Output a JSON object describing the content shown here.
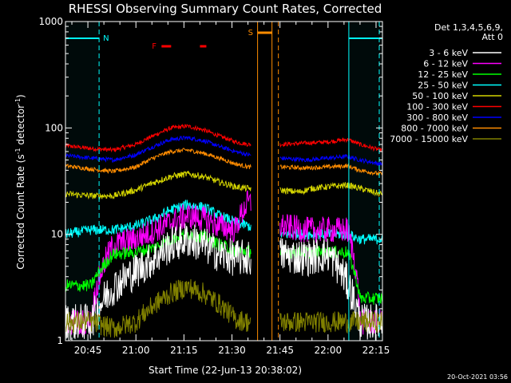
{
  "chart_data": {
    "type": "line",
    "title": "RHESSI Observing Summary Count Rates, Corrected",
    "xlabel": "Start Time (22-Jun-13 20:38:02)",
    "ylabel": "Corrected Count Rate (s",
    "ylabel_sup1": "-1",
    "ylabel_mid": " detector",
    "ylabel_sup2": "-1",
    "ylabel_end": ")",
    "y_scale": "log",
    "ylim": [
      1,
      1000
    ],
    "y_ticks": [
      {
        "value": 1,
        "label": "1"
      },
      {
        "value": 10,
        "label": "10"
      },
      {
        "value": 100,
        "label": "100"
      },
      {
        "value": 1000,
        "label": "1000"
      }
    ],
    "xlim_minutes": [
      0,
      99
    ],
    "x_ticks": [
      {
        "min": 7,
        "label": "20:45"
      },
      {
        "min": 22,
        "label": "21:00"
      },
      {
        "min": 37,
        "label": "21:15"
      },
      {
        "min": 52,
        "label": "21:30"
      },
      {
        "min": 67,
        "label": "21:45"
      },
      {
        "min": 82,
        "label": "22:00"
      },
      {
        "min": 97,
        "label": "22:15"
      }
    ],
    "legend_header": [
      "Det 1,3,4,5,6,9,",
      "Att 0"
    ],
    "legend_position": "right",
    "timestamp": "20-Oct-2021 03:56",
    "gap_minutes": [
      58,
      67
    ],
    "night_shading_color": "#00ffff",
    "flags": {
      "N": {
        "label": "N",
        "color": "#00ffff",
        "segments": [
          [
            0,
            10.5
          ],
          [
            88.5,
            99
          ]
        ],
        "markers": [
          10.5,
          88.5,
          98
        ]
      },
      "S": {
        "label": "S",
        "color": "#ff8c00",
        "segments": [
          [
            60,
            64.5
          ]
        ],
        "markers": [
          60,
          64.5,
          66.5
        ]
      },
      "F": {
        "label": "F",
        "color": "#ff0000",
        "segments": [
          [
            30,
            33
          ],
          [
            42,
            44
          ]
        ]
      }
    },
    "series": [
      {
        "name": "3 - 6 keV",
        "color": "#ffffff"
      },
      {
        "name": "6 - 12 keV",
        "color": "#ff00ff"
      },
      {
        "name": "12 - 25 keV",
        "color": "#00ff00"
      },
      {
        "name": "25 - 50 keV",
        "color": "#00ffff"
      },
      {
        "name": "50 - 100 keV",
        "color": "#d4d400"
      },
      {
        "name": "100 - 300 keV",
        "color": "#ff0000"
      },
      {
        "name": "300 - 800 keV",
        "color": "#0000ff"
      },
      {
        "name": "800 - 7000 keV",
        "color": "#ff8c00"
      },
      {
        "name": "7000 - 15000 keV",
        "color": "#808000"
      }
    ],
    "series_traces": [
      {
        "name": "100 - 300 keV",
        "t": [
          0,
          8,
          15,
          22,
          28,
          33,
          38,
          43,
          48,
          53,
          57,
          67,
          75,
          82,
          88,
          92,
          98
        ],
        "v": [
          68,
          64,
          62,
          70,
          86,
          100,
          104,
          96,
          84,
          74,
          70,
          70,
          72,
          74,
          78,
          70,
          62
        ]
      },
      {
        "name": "300 - 800 keV",
        "t": [
          0,
          8,
          15,
          22,
          28,
          33,
          38,
          43,
          48,
          53,
          57,
          67,
          75,
          82,
          88,
          92,
          98
        ],
        "v": [
          55,
          52,
          50,
          56,
          68,
          78,
          81,
          76,
          67,
          60,
          56,
          52,
          50,
          52,
          54,
          50,
          46
        ]
      },
      {
        "name": "800 - 7000 keV",
        "t": [
          0,
          8,
          15,
          22,
          28,
          33,
          38,
          43,
          48,
          53,
          57,
          67,
          75,
          82,
          88,
          92,
          98
        ],
        "v": [
          44,
          41,
          39,
          43,
          53,
          60,
          62,
          58,
          52,
          46,
          43,
          43,
          42,
          43,
          44,
          40,
          37
        ]
      },
      {
        "name": "50 - 100 keV",
        "t": [
          0,
          8,
          15,
          22,
          28,
          33,
          38,
          43,
          48,
          53,
          57,
          67,
          73,
          77,
          82,
          88,
          92,
          98
        ],
        "v": [
          24,
          23,
          23,
          26,
          31,
          35,
          37,
          35,
          31,
          28,
          27,
          26,
          25,
          27,
          28,
          29,
          27,
          24
        ]
      },
      {
        "name": "25 - 50 keV",
        "t": [
          0,
          8,
          15,
          22,
          28,
          33,
          38,
          43,
          48,
          53,
          57,
          67,
          75,
          82,
          88,
          92,
          98
        ],
        "v": [
          10,
          11,
          11,
          12,
          14,
          17,
          19,
          18,
          15,
          13,
          12,
          10,
          10,
          10,
          10,
          9,
          9
        ]
      },
      {
        "name": "6 - 12 keV",
        "t": [
          0,
          8,
          15,
          22,
          28,
          33,
          38,
          43,
          48,
          53,
          57,
          67,
          75,
          82,
          88,
          92,
          98
        ],
        "v": [
          1.5,
          1.5,
          8,
          9,
          11,
          13,
          15,
          14,
          12,
          11,
          20,
          12,
          11,
          11,
          11,
          1.5,
          1.5
        ]
      },
      {
        "name": "12 - 25 keV",
        "t": [
          0,
          8,
          15,
          22,
          28,
          33,
          38,
          43,
          48,
          53,
          57,
          67,
          75,
          82,
          88,
          92,
          98
        ],
        "v": [
          3.3,
          3.3,
          6.5,
          6.8,
          7.5,
          9,
          10,
          9.5,
          8,
          7,
          7,
          6.8,
          6.8,
          6.8,
          6.8,
          2.5,
          2.5
        ]
      },
      {
        "name": "3 - 6 keV",
        "t": [
          0,
          8,
          15,
          22,
          28,
          33,
          38,
          43,
          48,
          53,
          57,
          67,
          75,
          82,
          88,
          92,
          98
        ],
        "v": [
          1.5,
          1.5,
          3.2,
          4.5,
          6,
          8,
          9,
          8,
          6.5,
          6,
          6,
          6.5,
          6,
          6.5,
          3.5,
          1.5,
          1.5
        ]
      },
      {
        "name": "7000 - 15000 keV",
        "t": [
          0,
          8,
          15,
          22,
          28,
          33,
          38,
          43,
          48,
          53,
          57,
          67,
          75,
          82,
          88,
          92,
          98
        ],
        "v": [
          1.5,
          1.5,
          1.3,
          1.5,
          2.2,
          2.8,
          3.2,
          2.8,
          2.2,
          1.6,
          1.5,
          1.5,
          1.5,
          1.5,
          1.5,
          1.5,
          1.5
        ]
      }
    ]
  }
}
